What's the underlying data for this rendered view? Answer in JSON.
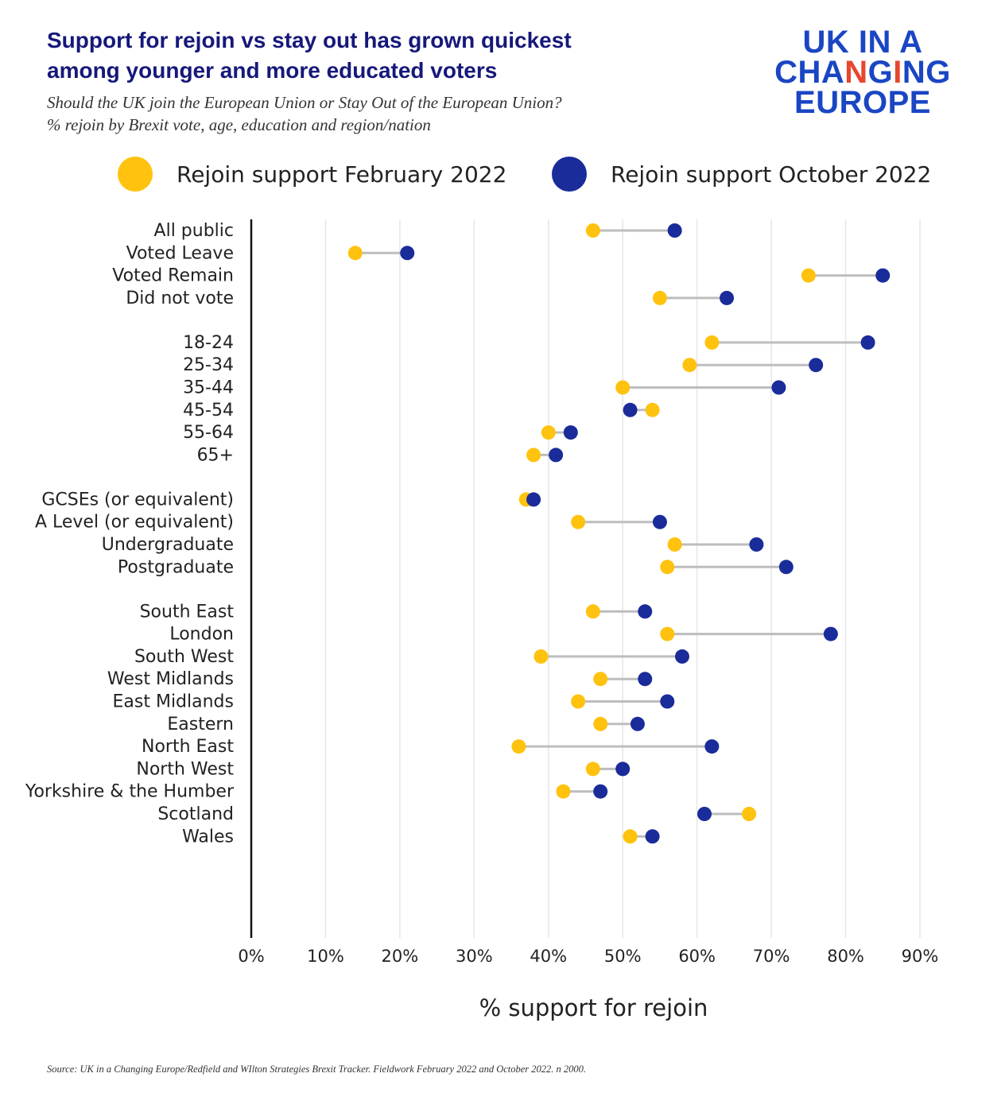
{
  "title_lines": [
    "Support for rejoin vs stay out has grown quickest",
    "among younger and more educated voters"
  ],
  "subtitle_lines": [
    "Should the UK join the European Union or Stay Out of the European Union?",
    "% rejoin by Brexit vote, age, education and region/nation"
  ],
  "logo": {
    "line1": "UK IN A",
    "line2_a": "CHA",
    "line2_b": "N",
    "line2_c": "G",
    "line2_d": "I",
    "line2_e": "NG",
    "line3": "EUROPE"
  },
  "colors": {
    "feb": "#ffc20e",
    "oct": "#1a2b9a",
    "connector": "#bdbdbd",
    "grid": "#e6e6e6",
    "axis": "#111111",
    "title": "#16187a",
    "logo_blue": "#1a46c4",
    "logo_accent": "#e8462e"
  },
  "legend": [
    {
      "label": "Rejoin support February 2022",
      "color": "#ffc20e"
    },
    {
      "label": "Rejoin support October 2022",
      "color": "#1a2b9a"
    }
  ],
  "source": "Source: UK in a Changing Europe/Redfield and WIlton Strategies Brexit Tracker. Fieldwork February 2022 and October 2022. n 2000.",
  "chart_data": {
    "type": "dumbbell",
    "xlabel": "% support for rejoin",
    "xlim": [
      0,
      90
    ],
    "ticks": [
      0,
      10,
      20,
      30,
      40,
      50,
      60,
      70,
      80,
      90
    ],
    "tick_labels": [
      "0%",
      "10%",
      "20%",
      "30%",
      "40%",
      "50%",
      "60%",
      "70%",
      "80%",
      "90%"
    ],
    "grid": true,
    "legend_position": "top",
    "series": [
      {
        "name": "Rejoin support February 2022"
      },
      {
        "name": "Rejoin support October 2022"
      }
    ],
    "groups": [
      {
        "rows": [
          {
            "label": "All public",
            "feb": 46,
            "oct": 57
          },
          {
            "label": "Voted Leave",
            "feb": 14,
            "oct": 21
          },
          {
            "label": "Voted Remain",
            "feb": 75,
            "oct": 85
          },
          {
            "label": "Did not vote",
            "feb": 55,
            "oct": 64
          }
        ]
      },
      {
        "rows": [
          {
            "label": "18-24",
            "feb": 62,
            "oct": 83
          },
          {
            "label": "25-34",
            "feb": 59,
            "oct": 76
          },
          {
            "label": "35-44",
            "feb": 50,
            "oct": 71
          },
          {
            "label": "45-54",
            "feb": 54,
            "oct": 51
          },
          {
            "label": "55-64",
            "feb": 40,
            "oct": 43
          },
          {
            "label": "65+",
            "feb": 38,
            "oct": 41
          }
        ]
      },
      {
        "rows": [
          {
            "label": "GCSEs (or equivalent)",
            "feb": 37,
            "oct": 38
          },
          {
            "label": "A Level (or equivalent)",
            "feb": 44,
            "oct": 55
          },
          {
            "label": "Undergraduate",
            "feb": 57,
            "oct": 68
          },
          {
            "label": "Postgraduate",
            "feb": 56,
            "oct": 72
          }
        ]
      },
      {
        "rows": [
          {
            "label": "South East",
            "feb": 46,
            "oct": 53
          },
          {
            "label": "London",
            "feb": 56,
            "oct": 78
          },
          {
            "label": "South West",
            "feb": 39,
            "oct": 58
          },
          {
            "label": "West Midlands",
            "feb": 47,
            "oct": 53
          },
          {
            "label": "East Midlands",
            "feb": 44,
            "oct": 56
          },
          {
            "label": "Eastern",
            "feb": 47,
            "oct": 52
          },
          {
            "label": "North East",
            "feb": 36,
            "oct": 62
          },
          {
            "label": "North West",
            "feb": 46,
            "oct": 50
          },
          {
            "label": "Yorkshire & the Humber",
            "feb": 42,
            "oct": 47
          },
          {
            "label": "Scotland",
            "feb": 67,
            "oct": 61
          },
          {
            "label": "Wales",
            "feb": 51,
            "oct": 54
          }
        ]
      }
    ]
  }
}
